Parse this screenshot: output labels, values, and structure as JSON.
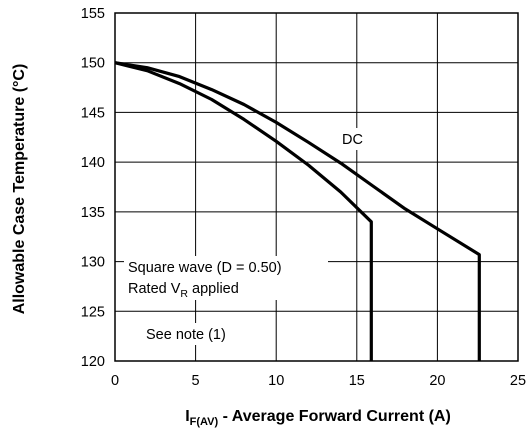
{
  "chart_data": {
    "type": "line",
    "title": "",
    "xlabel": {
      "main": "I",
      "subscript": "F(AV)",
      "rest": " - Average Forward Current (A)"
    },
    "ylabel": "Allowable Case Temperature (°C)",
    "xlim": [
      0,
      25
    ],
    "ylim": [
      120,
      155
    ],
    "x_ticks": [
      0,
      5,
      10,
      15,
      20,
      25
    ],
    "y_ticks": [
      120,
      125,
      130,
      135,
      140,
      145,
      150,
      155
    ],
    "x_tick_labels": [
      "0",
      "5",
      "10",
      "15",
      "20",
      "25"
    ],
    "y_tick_labels": [
      "120",
      "125",
      "130",
      "135",
      "140",
      "145",
      "150",
      "155"
    ],
    "grid": true,
    "series": [
      {
        "name": "DC",
        "x": [
          0,
          2,
          4,
          6,
          8,
          10,
          12,
          14,
          16,
          18,
          20,
          22.6,
          22.6
        ],
        "y": [
          150,
          149.5,
          148.6,
          147.3,
          145.8,
          144.0,
          142.0,
          139.9,
          137.6,
          135.3,
          133.3,
          130.7,
          120
        ]
      },
      {
        "name": "Square wave (D = 0.50)",
        "x": [
          0,
          2,
          4,
          6,
          8,
          10,
          12,
          14,
          15.9,
          15.9
        ],
        "y": [
          150,
          149.2,
          147.9,
          146.3,
          144.3,
          142.1,
          139.7,
          137.0,
          134.0,
          120
        ]
      }
    ],
    "annotations": {
      "dc_label": "DC",
      "square_line1": "Square wave (D = 0.50)",
      "square_line2_main": "Rated V",
      "square_line2_sub": "R",
      "square_line2_rest": " applied",
      "note": "See note (1)"
    }
  }
}
